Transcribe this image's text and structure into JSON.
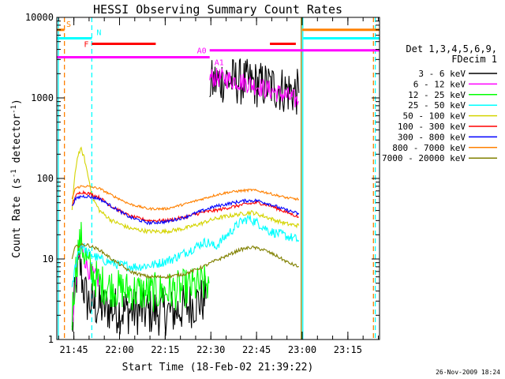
{
  "chart_data": {
    "type": "line",
    "title": "HESSI Observing Summary Count Rates",
    "xlabel": "Start Time (18-Feb-02 21:39:22)",
    "ylabel_main": "Count Rate (s",
    "ylabel_sup1": "-1",
    "ylabel_mid": " detector",
    "ylabel_sup2": "-1",
    "ylabel_end": ")",
    "ylog": true,
    "ylim": [
      1,
      10000
    ],
    "xlim_min": [
      0,
      106
    ],
    "x_unit": "minutes after start",
    "x_ticks": [
      {
        "label": "21:45",
        "min": 5.6
      },
      {
        "label": "22:00",
        "min": 20.6
      },
      {
        "label": "22:15",
        "min": 35.6
      },
      {
        "label": "22:30",
        "min": 50.6
      },
      {
        "label": "22:45",
        "min": 65.6
      },
      {
        "label": "23:00",
        "min": 80.6
      },
      {
        "label": "23:15",
        "min": 95.6
      }
    ],
    "y_ticks": [
      {
        "label": "1",
        "value": 1
      },
      {
        "label": "10",
        "value": 10
      },
      {
        "label": "100",
        "value": 100
      },
      {
        "label": "1000",
        "value": 1000
      },
      {
        "label": "10000",
        "value": 10000
      }
    ],
    "legend": {
      "header1": "Det 1,3,4,5,6,9,",
      "header2": "FDecim 1",
      "placement": "right",
      "entries": [
        {
          "label": "3 - 6 keV",
          "color": "#000000"
        },
        {
          "label": "6 - 12 keV",
          "color": "#ff00ff"
        },
        {
          "label": "12 - 25 keV",
          "color": "#00ff00"
        },
        {
          "label": "25 - 50 keV",
          "color": "#00ffff"
        },
        {
          "label": "50 - 100 keV",
          "color": "#d4d400"
        },
        {
          "label": "100 - 300 keV",
          "color": "#ff0000"
        },
        {
          "label": "300 - 800 keV",
          "color": "#0000ff"
        },
        {
          "label": "800 - 7000 keV",
          "color": "#ff8000"
        },
        {
          "label": "7000 - 20000 keV",
          "color": "#808000"
        }
      ]
    },
    "series": [
      {
        "name": "3 - 6 keV",
        "color": "#000000",
        "noise": 0.6,
        "segments": [
          [
            [
              5,
              1.2
            ],
            [
              5.8,
              3
            ],
            [
              6.5,
              6
            ],
            [
              7.5,
              9
            ],
            [
              8.5,
              5
            ],
            [
              10,
              3
            ],
            [
              13,
              2.6
            ],
            [
              20,
              2.3
            ],
            [
              30,
              2.2
            ],
            [
              38,
              2.2
            ],
            [
              45,
              2.8
            ],
            [
              49,
              3.2
            ]
          ],
          [
            [
              50.2,
              1500
            ],
            [
              55,
              1700
            ],
            [
              62,
              1550
            ],
            [
              70,
              1400
            ],
            [
              75,
              1250
            ],
            [
              79.5,
              1150
            ]
          ]
        ]
      },
      {
        "name": "6 - 12 keV",
        "color": "#ff00ff",
        "noise": 0.25,
        "segments": [
          [
            [
              5,
              1.5
            ],
            [
              6,
              4
            ],
            [
              7,
              10
            ],
            [
              8,
              14
            ],
            [
              9,
              11
            ],
            [
              10,
              8
            ],
            [
              12,
              6
            ],
            [
              14,
              5.5
            ]
          ],
          [
            [
              50.2,
              1800
            ],
            [
              55,
              1750
            ],
            [
              62,
              1550
            ],
            [
              70,
              1250
            ],
            [
              75,
              1080
            ],
            [
              79.5,
              900
            ]
          ]
        ]
      },
      {
        "name": "12 - 25 keV",
        "color": "#00ff00",
        "noise": 0.5,
        "segments": [
          [
            [
              5,
              2
            ],
            [
              6,
              6
            ],
            [
              7,
              13
            ],
            [
              8,
              17
            ],
            [
              9,
              12
            ],
            [
              11,
              7
            ],
            [
              14,
              5
            ],
            [
              20,
              4.2
            ],
            [
              30,
              3.8
            ],
            [
              38,
              4
            ],
            [
              45,
              4.5
            ],
            [
              50,
              5
            ]
          ]
        ]
      },
      {
        "name": "25 - 50 keV",
        "color": "#00ffff",
        "noise": 0.12,
        "segments": [
          [
            [
              5,
              4
            ],
            [
              6,
              8
            ],
            [
              7,
              12
            ],
            [
              8,
              15
            ],
            [
              9,
              14
            ],
            [
              10,
              12
            ],
            [
              12,
              11
            ],
            [
              14,
              10
            ],
            [
              20,
              8.5
            ],
            [
              26,
              8
            ],
            [
              32,
              8.5
            ],
            [
              38,
              10
            ],
            [
              44,
              13
            ],
            [
              48,
              16
            ],
            [
              50,
              16
            ],
            [
              52,
              14
            ],
            [
              56,
              20
            ],
            [
              60,
              28
            ],
            [
              63,
              32
            ],
            [
              66,
              28
            ],
            [
              70,
              22
            ],
            [
              74,
              20
            ],
            [
              78,
              18
            ],
            [
              79.5,
              17
            ]
          ]
        ]
      },
      {
        "name": "50 - 100 keV",
        "color": "#d4d400",
        "noise": 0.05,
        "segments": [
          [
            [
              5,
              40
            ],
            [
              6,
              120
            ],
            [
              7,
              200
            ],
            [
              8,
              230
            ],
            [
              9,
              180
            ],
            [
              10,
              120
            ],
            [
              11,
              80
            ],
            [
              12,
              55
            ],
            [
              14,
              40
            ],
            [
              18,
              30
            ],
            [
              24,
              24
            ],
            [
              30,
              22
            ],
            [
              36,
              22
            ],
            [
              42,
              24
            ],
            [
              48,
              28
            ],
            [
              50,
              30
            ],
            [
              54,
              33
            ],
            [
              60,
              36
            ],
            [
              64,
              38
            ],
            [
              68,
              34
            ],
            [
              72,
              30
            ],
            [
              76,
              27
            ],
            [
              79.5,
              26
            ]
          ]
        ]
      },
      {
        "name": "100 - 300 keV",
        "color": "#ff0000",
        "noise": 0.04,
        "segments": [
          [
            [
              5,
              45
            ],
            [
              6,
              60
            ],
            [
              8,
              68
            ],
            [
              10,
              66
            ],
            [
              14,
              58
            ],
            [
              18,
              45
            ],
            [
              24,
              34
            ],
            [
              30,
              30
            ],
            [
              36,
              30
            ],
            [
              42,
              33
            ],
            [
              48,
              38
            ],
            [
              52,
              40
            ],
            [
              56,
              43
            ],
            [
              62,
              48
            ],
            [
              66,
              50
            ],
            [
              70,
              46
            ],
            [
              74,
              40
            ],
            [
              78,
              35
            ],
            [
              79.5,
              33
            ]
          ]
        ]
      },
      {
        "name": "300 - 800 keV",
        "color": "#0000ff",
        "noise": 0.04,
        "segments": [
          [
            [
              5,
              45
            ],
            [
              6,
              55
            ],
            [
              8,
              60
            ],
            [
              10,
              60
            ],
            [
              14,
              56
            ],
            [
              18,
              45
            ],
            [
              24,
              33
            ],
            [
              30,
              28
            ],
            [
              36,
              29
            ],
            [
              42,
              33
            ],
            [
              48,
              40
            ],
            [
              52,
              45
            ],
            [
              58,
              50
            ],
            [
              62,
              53
            ],
            [
              66,
              53
            ],
            [
              70,
              48
            ],
            [
              74,
              42
            ],
            [
              78,
              38
            ],
            [
              79.5,
              36
            ]
          ]
        ]
      },
      {
        "name": "800 - 7000 keV",
        "color": "#ff8000",
        "noise": 0.03,
        "segments": [
          [
            [
              5,
              55
            ],
            [
              6,
              75
            ],
            [
              8,
              80
            ],
            [
              10,
              80
            ],
            [
              14,
              75
            ],
            [
              18,
              62
            ],
            [
              24,
              48
            ],
            [
              30,
              42
            ],
            [
              36,
              42
            ],
            [
              42,
              48
            ],
            [
              48,
              56
            ],
            [
              52,
              62
            ],
            [
              56,
              67
            ],
            [
              60,
              70
            ],
            [
              64,
              72
            ],
            [
              68,
              68
            ],
            [
              72,
              62
            ],
            [
              76,
              57
            ],
            [
              79.5,
              55
            ]
          ]
        ]
      },
      {
        "name": "7000 - 20000 keV",
        "color": "#808000",
        "noise": 0.04,
        "segments": [
          [
            [
              5,
              10
            ],
            [
              6,
              14
            ],
            [
              8,
              15
            ],
            [
              10,
              15
            ],
            [
              14,
              13
            ],
            [
              18,
              10
            ],
            [
              24,
              7
            ],
            [
              30,
              6
            ],
            [
              36,
              6
            ],
            [
              42,
              6.5
            ],
            [
              48,
              8
            ],
            [
              52,
              9.5
            ],
            [
              56,
              11
            ],
            [
              60,
              13
            ],
            [
              64,
              14
            ],
            [
              68,
              13
            ],
            [
              72,
              11
            ],
            [
              76,
              9
            ],
            [
              79.5,
              8
            ]
          ]
        ]
      }
    ],
    "flag_bars": [
      {
        "label": "S",
        "color": "#ff8000",
        "value": 7000,
        "ranges": [
          [
            0,
            2.5
          ],
          [
            80.6,
            106
          ]
        ]
      },
      {
        "label": "N",
        "color": "#00ffff",
        "value": 5500,
        "ranges": [
          [
            0,
            11.5
          ],
          [
            81,
            106
          ]
        ]
      },
      {
        "label": "F",
        "color": "#ff0000",
        "value": 4700,
        "ranges": [
          [
            11.5,
            32.5
          ],
          [
            70,
            78.5
          ]
        ]
      },
      {
        "label": "A0",
        "color": "#ff00ff",
        "value": 3900,
        "ranges": [
          [
            50.2,
            106
          ]
        ]
      },
      {
        "label": "A1",
        "color": "#ff00ff",
        "value": 3200,
        "ranges": [
          [
            0,
            50.2
          ]
        ]
      }
    ],
    "vlines": [
      {
        "min": 0.5,
        "color": "#00ffff",
        "dash": false
      },
      {
        "min": 2.5,
        "color": "#ff8000",
        "dash": true
      },
      {
        "min": 11.5,
        "color": "#00ffff",
        "dash": true
      },
      {
        "min": 80.3,
        "color": "#808000",
        "dash": false
      },
      {
        "min": 80.8,
        "color": "#00ffff",
        "dash": false
      },
      {
        "min": 104,
        "color": "#ff8000",
        "dash": true
      },
      {
        "min": 104.6,
        "color": "#00ffff",
        "dash": true
      }
    ],
    "timestamp": "26-Nov-2009 18:24"
  }
}
